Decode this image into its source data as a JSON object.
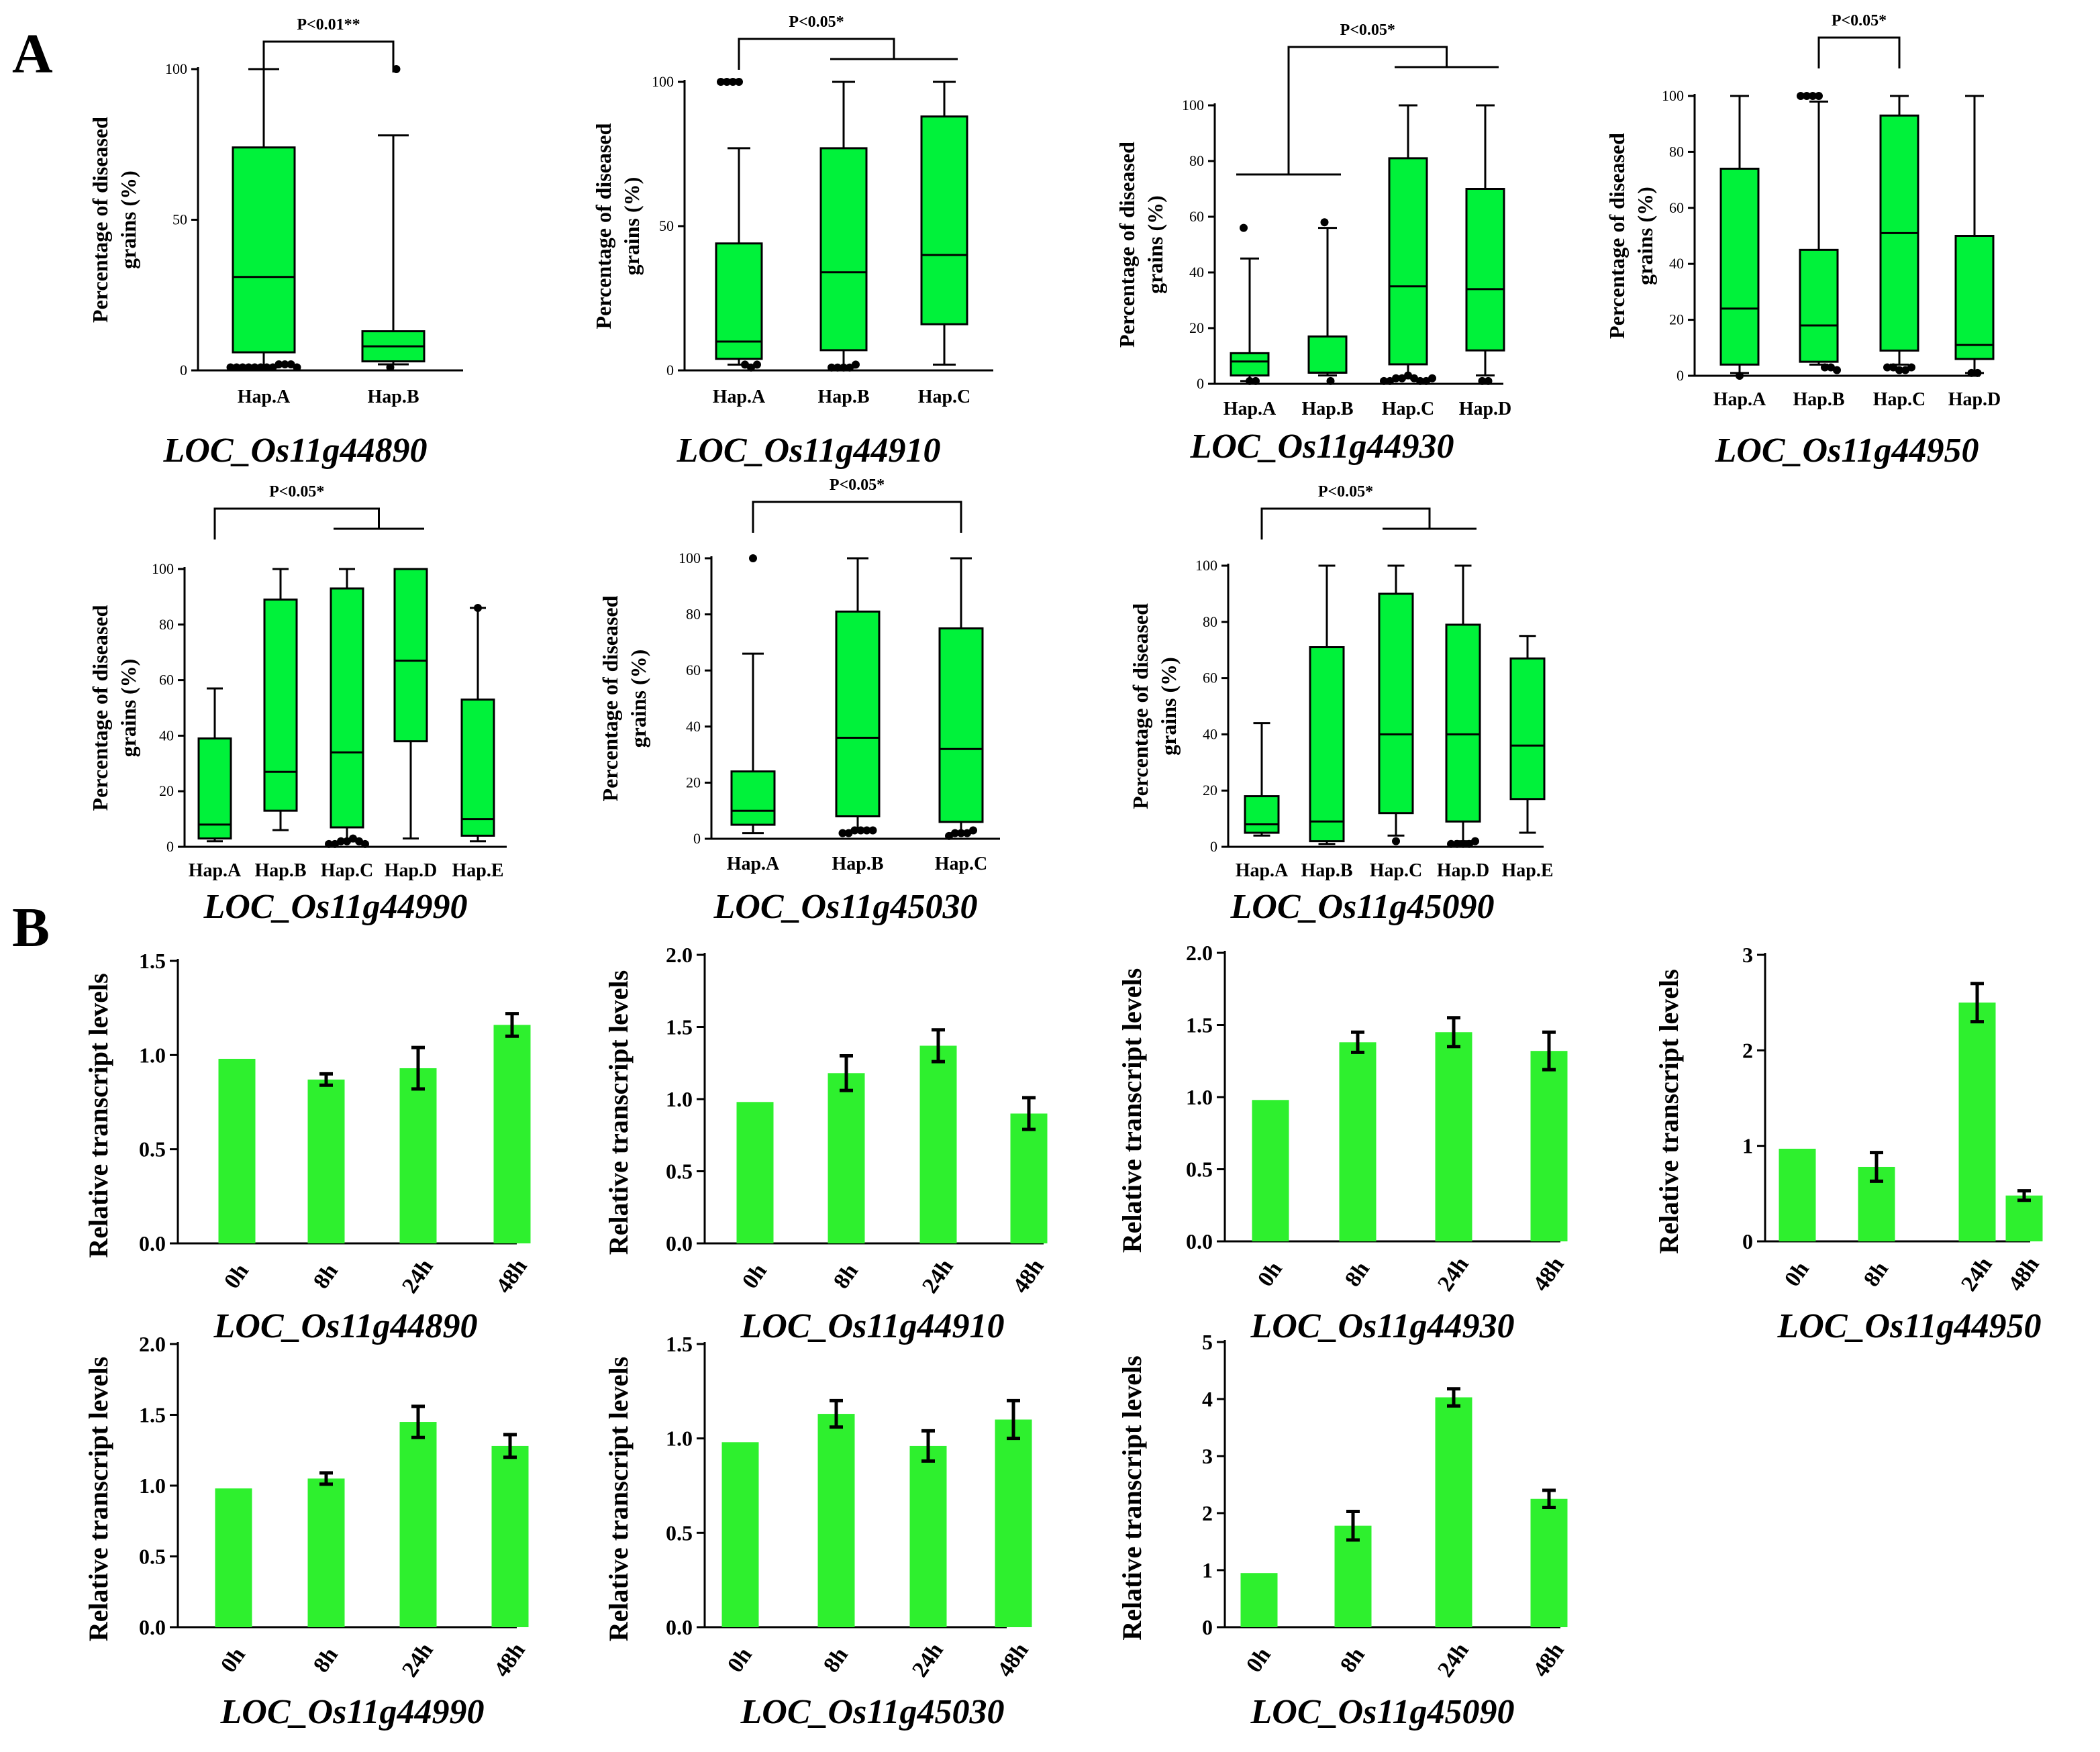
{
  "panel_labels": {
    "a": "A",
    "b": "B"
  },
  "colors": {
    "box_fill": "#00f23a",
    "bar_fill": "#2ef02e",
    "stroke": "#000000"
  },
  "chart_data": [
    {
      "id": "A1",
      "type": "boxplot",
      "panel": "A",
      "title": "LOC_Os11g44890",
      "ylabel_line1": "Percentage of diseased",
      "ylabel_line2": "grains (%)",
      "ylim": [
        0,
        100
      ],
      "yticks": [
        0,
        50,
        100
      ],
      "categories": [
        "Hap.A",
        "Hap.B"
      ],
      "boxes": [
        {
          "min": 1,
          "q1": 6,
          "median": 31,
          "q3": 74,
          "max": 100,
          "outliers": [
            1,
            1,
            1,
            1,
            1,
            1,
            1,
            1,
            2,
            2,
            2,
            1
          ]
        },
        {
          "min": 2,
          "q1": 3,
          "median": 8,
          "q3": 13,
          "max": 78,
          "outliers": [
            1,
            100
          ]
        }
      ],
      "significance": [
        {
          "label": "P<0.01**",
          "from": 0,
          "to": 1
        }
      ]
    },
    {
      "id": "A2",
      "type": "boxplot",
      "panel": "A",
      "title": "LOC_Os11g44910",
      "ylabel_line1": "Percentage of diseased",
      "ylabel_line2": "grains (%)",
      "ylim": [
        0,
        100
      ],
      "yticks": [
        0,
        50,
        100
      ],
      "categories": [
        "Hap.A",
        "Hap.B",
        "Hap.C"
      ],
      "boxes": [
        {
          "min": 2,
          "q1": 4,
          "median": 10,
          "q3": 44,
          "max": 77,
          "outliers": [
            100,
            100,
            100,
            100,
            2,
            1,
            2
          ]
        },
        {
          "min": 1,
          "q1": 7,
          "median": 34,
          "q3": 77,
          "max": 100,
          "outliers": [
            1,
            1,
            1,
            1,
            2
          ]
        },
        {
          "min": 2,
          "q1": 16,
          "median": 40,
          "q3": 88,
          "max": 100,
          "outliers": []
        }
      ],
      "significance": [
        {
          "label": "P<0.05*",
          "from": 0,
          "to": [
            1,
            2
          ]
        }
      ]
    },
    {
      "id": "A3",
      "type": "boxplot",
      "panel": "A",
      "title": "LOC_Os11g44930",
      "ylabel_line1": "Percentage of diseased",
      "ylabel_line2": "grains (%)",
      "ylim": [
        0,
        100
      ],
      "yticks": [
        0,
        20,
        40,
        60,
        80,
        100
      ],
      "categories": [
        "Hap.A",
        "Hap.B",
        "Hap.C",
        "Hap.D"
      ],
      "boxes": [
        {
          "min": 1,
          "q1": 3,
          "median": 8,
          "q3": 11,
          "max": 45,
          "outliers": [
            56,
            1,
            1
          ]
        },
        {
          "min": 3,
          "q1": 4,
          "median": 4,
          "q3": 17,
          "max": 56,
          "outliers": [
            58,
            1
          ]
        },
        {
          "min": 2,
          "q1": 7,
          "median": 35,
          "q3": 81,
          "max": 100,
          "outliers": [
            1,
            1,
            2,
            2,
            3,
            2,
            1,
            1,
            2
          ]
        },
        {
          "min": 3,
          "q1": 12,
          "median": 34,
          "q3": 70,
          "max": 100,
          "outliers": [
            1,
            1
          ]
        }
      ],
      "significance": [
        {
          "label": "P<0.05*",
          "from": [
            0,
            1
          ],
          "to": [
            2,
            3
          ]
        }
      ]
    },
    {
      "id": "A4",
      "type": "boxplot",
      "panel": "A",
      "title": "LOC_Os11g44950",
      "ylabel_line1": "Percentage of diseased",
      "ylabel_line2": "grains (%)",
      "ylim": [
        0,
        100
      ],
      "yticks": [
        0,
        20,
        40,
        60,
        80,
        100
      ],
      "categories": [
        "Hap.A",
        "Hap.B",
        "Hap.C",
        "Hap.D"
      ],
      "boxes": [
        {
          "min": 1,
          "q1": 4,
          "median": 24,
          "q3": 74,
          "max": 100,
          "outliers": [
            0
          ]
        },
        {
          "min": 4,
          "q1": 5,
          "median": 18,
          "q3": 45,
          "max": 98,
          "outliers": [
            100,
            100,
            100,
            100,
            3,
            3,
            2
          ]
        },
        {
          "min": 4,
          "q1": 9,
          "median": 51,
          "q3": 93,
          "max": 100,
          "outliers": [
            3,
            3,
            2,
            2,
            3
          ]
        },
        {
          "min": 1,
          "q1": 6,
          "median": 11,
          "q3": 50,
          "max": 100,
          "outliers": [
            1,
            1
          ]
        }
      ],
      "significance": [
        {
          "label": "P<0.05*",
          "from": 1,
          "to": 2
        }
      ]
    },
    {
      "id": "A5",
      "type": "boxplot",
      "panel": "A",
      "title": "LOC_Os11g44990",
      "ylabel_line1": "Percentage of diseased",
      "ylabel_line2": "grains (%)",
      "ylim": [
        0,
        100
      ],
      "yticks": [
        0,
        20,
        40,
        60,
        80,
        100
      ],
      "categories": [
        "Hap.A",
        "Hap.B",
        "Hap.C",
        "Hap.D",
        "Hap.E"
      ],
      "boxes": [
        {
          "min": 2,
          "q1": 3,
          "median": 8,
          "q3": 39,
          "max": 57,
          "outliers": []
        },
        {
          "min": 6,
          "q1": 13,
          "median": 27,
          "q3": 89,
          "max": 100,
          "outliers": []
        },
        {
          "min": 2,
          "q1": 7,
          "median": 34,
          "q3": 93,
          "max": 100,
          "outliers": [
            1,
            1,
            2,
            2,
            3,
            2,
            1
          ]
        },
        {
          "min": 3,
          "q1": 38,
          "median": 67,
          "q3": 100,
          "max": 100,
          "outliers": []
        },
        {
          "min": 2,
          "q1": 4,
          "median": 10,
          "q3": 53,
          "max": 86,
          "outliers": [
            86
          ]
        }
      ],
      "significance": [
        {
          "label": "P<0.05*",
          "from": 0,
          "to": [
            2,
            3
          ]
        }
      ]
    },
    {
      "id": "A6",
      "type": "boxplot",
      "panel": "A",
      "title": "LOC_Os11g45030",
      "ylabel_line1": "Percentage of diseased",
      "ylabel_line2": "grains (%)",
      "ylim": [
        0,
        100
      ],
      "yticks": [
        0,
        20,
        40,
        60,
        80,
        100
      ],
      "categories": [
        "Hap.A",
        "Hap.B",
        "Hap.C"
      ],
      "boxes": [
        {
          "min": 2,
          "q1": 5,
          "median": 10,
          "q3": 24,
          "max": 66,
          "outliers": [
            100
          ]
        },
        {
          "min": 3,
          "q1": 8,
          "median": 36,
          "q3": 81,
          "max": 100,
          "outliers": [
            2,
            2,
            3,
            3,
            3,
            3
          ]
        },
        {
          "min": 2,
          "q1": 6,
          "median": 32,
          "q3": 75,
          "max": 100,
          "outliers": [
            1,
            2,
            2,
            2,
            3
          ]
        }
      ],
      "significance": [
        {
          "label": "P<0.05*",
          "from": 0,
          "to": 2
        }
      ]
    },
    {
      "id": "A7",
      "type": "boxplot",
      "panel": "A",
      "title": "LOC_Os11g45090",
      "ylabel_line1": "Percentage of diseased",
      "ylabel_line2": "grains (%)",
      "ylim": [
        0,
        100
      ],
      "yticks": [
        0,
        20,
        40,
        60,
        80,
        100
      ],
      "categories": [
        "Hap.A",
        "Hap.B",
        "Hap.C",
        "Hap.D",
        "Hap.E"
      ],
      "boxes": [
        {
          "min": 4,
          "q1": 5,
          "median": 8,
          "q3": 18,
          "max": 44,
          "outliers": []
        },
        {
          "min": 1,
          "q1": 2,
          "median": 9,
          "q3": 71,
          "max": 100,
          "outliers": []
        },
        {
          "min": 4,
          "q1": 12,
          "median": 40,
          "q3": 90,
          "max": 100,
          "outliers": [
            2
          ]
        },
        {
          "min": 2,
          "q1": 9,
          "median": 40,
          "q3": 79,
          "max": 100,
          "outliers": [
            1,
            1,
            1,
            1,
            2
          ]
        },
        {
          "min": 5,
          "q1": 17,
          "median": 36,
          "q3": 67,
          "max": 75,
          "outliers": []
        }
      ],
      "significance": [
        {
          "label": "P<0.05*",
          "from": 0,
          "to": [
            2,
            3
          ]
        }
      ]
    },
    {
      "id": "B1",
      "type": "bar",
      "panel": "B",
      "title": "LOC_Os11g44890",
      "ylabel": "Relative transcript levels",
      "categories": [
        "0h",
        "8h",
        "24h",
        "48h"
      ],
      "values": [
        0.98,
        0.87,
        0.93,
        1.16
      ],
      "errors": [
        0,
        0.03,
        0.11,
        0.06
      ],
      "ylim": [
        0,
        1.5
      ],
      "yticks": [
        "0.0",
        "0.5",
        "1.0",
        "1.5"
      ]
    },
    {
      "id": "B2",
      "type": "bar",
      "panel": "B",
      "title": "LOC_Os11g44910",
      "ylabel": "Relative transcript levels",
      "categories": [
        "0h",
        "8h",
        "24h",
        "48h"
      ],
      "values": [
        0.98,
        1.18,
        1.37,
        0.9
      ],
      "errors": [
        0,
        0.12,
        0.11,
        0.11
      ],
      "ylim": [
        0,
        2.0
      ],
      "yticks": [
        "0.0",
        "0.5",
        "1.0",
        "1.5",
        "2.0"
      ]
    },
    {
      "id": "B3",
      "type": "bar",
      "panel": "B",
      "title": "LOC_Os11g44930",
      "ylabel": "Relative transcript levels",
      "categories": [
        "0h",
        "8h",
        "24h",
        "48h"
      ],
      "values": [
        0.98,
        1.38,
        1.45,
        1.32
      ],
      "errors": [
        0,
        0.07,
        0.1,
        0.13
      ],
      "ylim": [
        0,
        2.0
      ],
      "yticks": [
        "0.0",
        "0.5",
        "1.0",
        "1.5",
        "2.0"
      ]
    },
    {
      "id": "B4",
      "type": "bar",
      "panel": "B",
      "title": "LOC_Os11g44950",
      "ylabel": "Relative transcript levels",
      "categories": [
        "0h",
        "8h",
        "24h",
        "48h"
      ],
      "values": [
        0.97,
        0.78,
        2.5,
        0.48
      ],
      "errors": [
        0,
        0.15,
        0.2,
        0.05
      ],
      "ylim": [
        0,
        3
      ],
      "yticks": [
        "0",
        "1",
        "2",
        "3"
      ]
    },
    {
      "id": "B5",
      "type": "bar",
      "panel": "B",
      "title": "LOC_Os11g44990",
      "ylabel": "Relative transcript levels",
      "categories": [
        "0h",
        "8h",
        "24h",
        "48h"
      ],
      "values": [
        0.98,
        1.05,
        1.45,
        1.28
      ],
      "errors": [
        0,
        0.04,
        0.11,
        0.08
      ],
      "ylim": [
        0,
        2.0
      ],
      "yticks": [
        "0.0",
        "0.5",
        "1.0",
        "1.5",
        "2.0"
      ]
    },
    {
      "id": "B6",
      "type": "bar",
      "panel": "B",
      "title": "LOC_Os11g45030",
      "ylabel": "Relative transcript levels",
      "categories": [
        "0h",
        "8h",
        "24h",
        "48h"
      ],
      "values": [
        0.98,
        1.13,
        0.96,
        1.1
      ],
      "errors": [
        0,
        0.07,
        0.08,
        0.1
      ],
      "ylim": [
        0,
        1.5
      ],
      "yticks": [
        "0.0",
        "0.5",
        "1.0",
        "1.5"
      ]
    },
    {
      "id": "B7",
      "type": "bar",
      "panel": "B",
      "title": "LOC_Os11g45090",
      "ylabel": "Relative transcript levels",
      "categories": [
        "0h",
        "8h",
        "24h",
        "48h"
      ],
      "values": [
        0.95,
        1.78,
        4.03,
        2.25
      ],
      "errors": [
        0,
        0.25,
        0.15,
        0.15
      ],
      "ylim": [
        0,
        5
      ],
      "yticks": [
        "0",
        "1",
        "2",
        "3",
        "4",
        "5"
      ]
    }
  ]
}
